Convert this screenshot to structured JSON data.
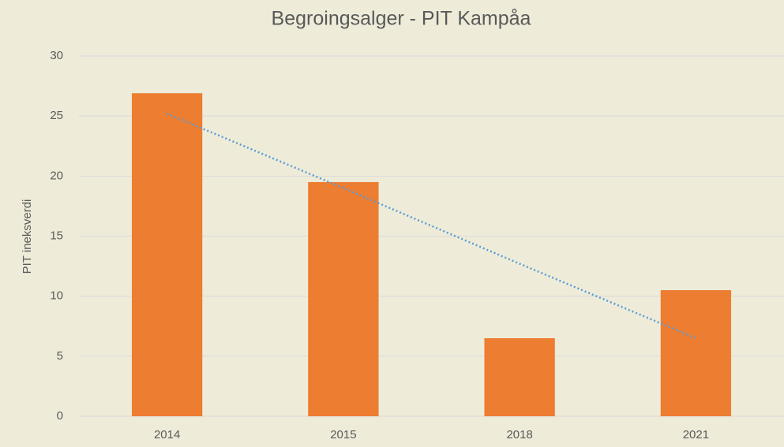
{
  "chart_data": {
    "type": "bar",
    "title": "Begroingsalger - PIT Kampåa",
    "y_label": "PIT ineksverdi",
    "categories": [
      "2014",
      "2015",
      "2018",
      "2021"
    ],
    "values": [
      26.9,
      19.5,
      6.5,
      10.5
    ],
    "color": "#ed7d31",
    "trendline": {
      "color": "#5b9bd5",
      "values": [
        25.2,
        19.0,
        12.7,
        6.5
      ]
    },
    "ylim": [
      0,
      30
    ],
    "yticks": [
      0,
      5,
      10,
      15,
      20,
      25,
      30
    ],
    "grid": true
  }
}
